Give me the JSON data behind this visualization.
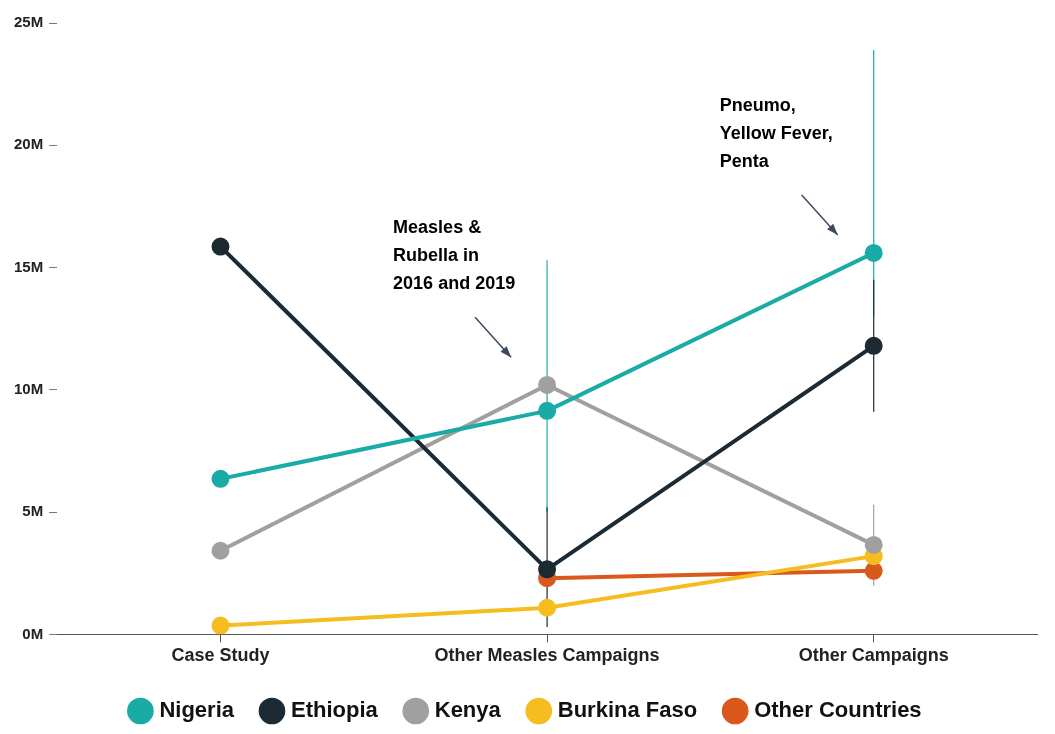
{
  "chart_data": {
    "type": "line",
    "categories": [
      "Case Study",
      "Other Measles Campaigns",
      "Other Campaigns"
    ],
    "series": [
      {
        "name": "Nigeria",
        "color": "#1aaba6",
        "values": [
          6.36,
          9.14,
          15.6
        ],
        "errors": [
          null,
          [
            5.0,
            15.3
          ],
          [
            13.0,
            23.9
          ]
        ]
      },
      {
        "name": "Ethiopia",
        "color": "#1b2a33",
        "values": [
          15.86,
          2.66,
          11.8
        ],
        "errors": [
          null,
          [
            0.3,
            5.2
          ],
          [
            9.1,
            14.5
          ]
        ]
      },
      {
        "name": "Kenya",
        "color": "#a0a0a0",
        "values": [
          3.42,
          10.2,
          3.66
        ],
        "errors": [
          null,
          null,
          [
            2.0,
            5.3
          ]
        ]
      },
      {
        "name": "Burkina Faso",
        "color": "#f5bd1f",
        "values": [
          0.36,
          1.09,
          3.2
        ]
      },
      {
        "name": "Other Countries",
        "color": "#d9581c",
        "values": [
          null,
          2.3,
          2.6
        ]
      }
    ],
    "ylim": [
      0,
      25
    ],
    "yticks": [
      {
        "value": 0,
        "label": "0M"
      },
      {
        "value": 5,
        "label": "5M"
      },
      {
        "value": 10,
        "label": "10M"
      },
      {
        "value": 15,
        "label": "15M"
      },
      {
        "value": 20,
        "label": "20M"
      },
      {
        "value": 25,
        "label": "25M"
      }
    ],
    "annotations": [
      "Measles &\nRubella in\n2016 and 2019",
      "Pneumo,\nYellow Fever,\nPenta"
    ],
    "legend": "bottom",
    "marker": "circle",
    "line_style": "solid",
    "grid": false
  }
}
